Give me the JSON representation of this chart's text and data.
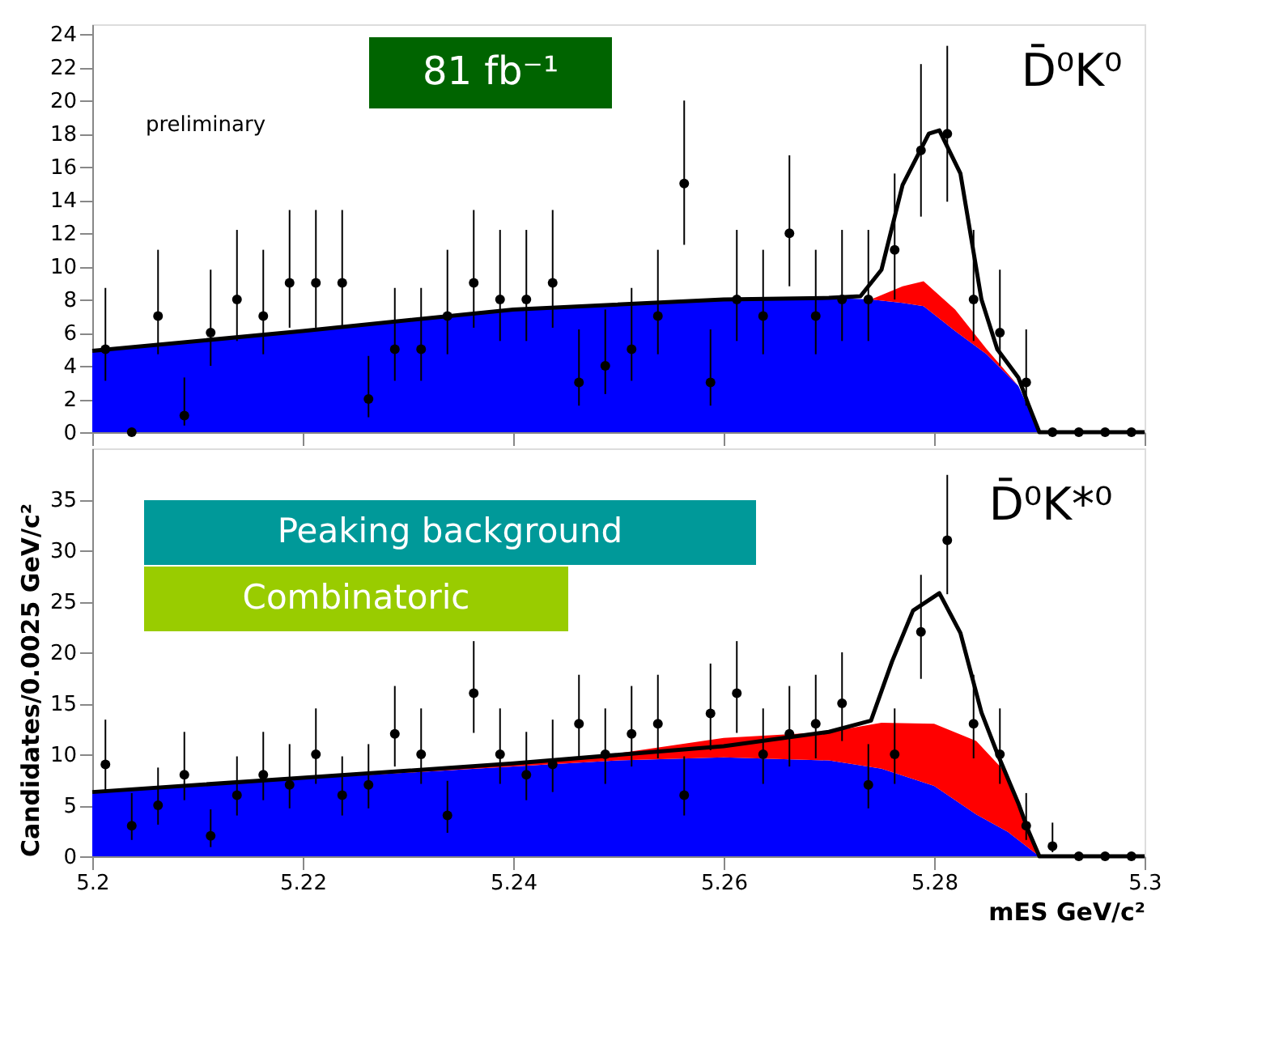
{
  "chart_data": [
    {
      "type": "scatter",
      "title": "D̄⁰K⁰",
      "annotations": [
        "81 fb⁻¹",
        "preliminary"
      ],
      "xlim": [
        5.2,
        5.3
      ],
      "ylim": [
        0,
        24.6
      ],
      "xticks": [
        {
          "value": 5.2,
          "label": null
        },
        {
          "value": 5.22,
          "label": null
        },
        {
          "value": 5.24,
          "label": null
        },
        {
          "value": 5.26,
          "label": null
        },
        {
          "value": 5.28,
          "label": null
        },
        {
          "value": 5.3,
          "label": null
        }
      ],
      "yticks": [
        0,
        2,
        4,
        6,
        8,
        10,
        12,
        14,
        16,
        18,
        20,
        22,
        24
      ],
      "tick_labels": "y",
      "stacked": true,
      "grid": false,
      "series": [
        {
          "type": "area",
          "color": "#0000ff",
          "x": [
            5.2,
            5.22,
            5.24,
            5.26,
            5.27,
            5.274,
            5.277,
            5.279,
            5.282,
            5.285,
            5.288,
            5.29,
            5.3
          ],
          "values": [
            4.9,
            6.1,
            7.4,
            8.0,
            8.1,
            8.0,
            7.8,
            7.6,
            6.1,
            4.7,
            2.8,
            0,
            0
          ]
        },
        {
          "type": "area",
          "color": "#ff0000",
          "x": [
            5.2,
            5.22,
            5.24,
            5.26,
            5.27,
            5.274,
            5.277,
            5.279,
            5.282,
            5.285,
            5.288,
            5.29,
            5.3
          ],
          "values": [
            0,
            0,
            0,
            0,
            0,
            0,
            1.0,
            1.5,
            1.3,
            0.3,
            0,
            0,
            0
          ]
        },
        {
          "type": "line",
          "color": "#000000",
          "line_style": "solid",
          "marker": "none",
          "x": [
            5.2,
            5.22,
            5.24,
            5.26,
            5.27,
            5.273,
            5.275,
            5.277,
            5.2795,
            5.2805,
            5.2825,
            5.2845,
            5.286,
            5.288,
            5.289,
            5.29,
            5.3
          ],
          "values": [
            4.9,
            6.1,
            7.4,
            8.0,
            8.1,
            8.2,
            9.8,
            14.9,
            18.0,
            18.2,
            15.6,
            8.0,
            5.0,
            3.3,
            1.6,
            0,
            0
          ]
        },
        {
          "type": "scatter",
          "color": "#000000",
          "marker": "circle",
          "x": [
            5.20125,
            5.20375,
            5.20625,
            5.20875,
            5.21125,
            5.21375,
            5.21625,
            5.21875,
            5.22125,
            5.22375,
            5.22625,
            5.22875,
            5.23125,
            5.23375,
            5.23625,
            5.23875,
            5.24125,
            5.24375,
            5.24625,
            5.24875,
            5.25125,
            5.25375,
            5.25625,
            5.25875,
            5.26125,
            5.26375,
            5.26625,
            5.26875,
            5.27125,
            5.27375,
            5.27625,
            5.27875,
            5.28125,
            5.28375,
            5.28625,
            5.28875,
            5.29125,
            5.29375,
            5.29625,
            5.29875
          ],
          "values": [
            5,
            0,
            7,
            1,
            6,
            8,
            7,
            9,
            9,
            9,
            2,
            5,
            5,
            7,
            9,
            8,
            8,
            9,
            3,
            4,
            5,
            7,
            15,
            3,
            8,
            7,
            12,
            7,
            8,
            8,
            11,
            17,
            18,
            8,
            6,
            3,
            0,
            0,
            0,
            0
          ],
          "errors": [
            [
              3.1,
              8.7
            ],
            null,
            [
              4.7,
              11.0
            ],
            [
              0.4,
              3.3
            ],
            [
              4.0,
              9.8
            ],
            [
              5.5,
              12.2
            ],
            [
              4.7,
              11.0
            ],
            [
              6.3,
              13.4
            ],
            [
              6.3,
              13.4
            ],
            [
              6.3,
              13.4
            ],
            [
              0.9,
              4.6
            ],
            [
              3.1,
              8.7
            ],
            [
              3.1,
              8.7
            ],
            [
              4.7,
              11.0
            ],
            [
              6.3,
              13.4
            ],
            [
              5.5,
              12.2
            ],
            [
              5.5,
              12.2
            ],
            [
              6.3,
              13.4
            ],
            [
              1.6,
              6.2
            ],
            [
              2.3,
              7.4
            ],
            [
              3.1,
              8.7
            ],
            [
              4.7,
              11.0
            ],
            [
              11.3,
              20.0
            ],
            [
              1.6,
              6.2
            ],
            [
              5.5,
              12.2
            ],
            [
              4.7,
              11.0
            ],
            [
              8.8,
              16.7
            ],
            [
              4.7,
              11.0
            ],
            [
              5.5,
              12.2
            ],
            [
              5.5,
              12.2
            ],
            [
              8.0,
              15.6
            ],
            [
              13.0,
              22.2
            ],
            [
              13.9,
              23.3
            ],
            [
              5.5,
              12.2
            ],
            [
              4.0,
              9.8
            ],
            [
              1.6,
              6.2
            ],
            null,
            null,
            null,
            null
          ]
        }
      ]
    },
    {
      "type": "scatter",
      "title": "D̄⁰K*⁰",
      "xlabel": "mES GeV/c²",
      "ylabel": "Candidates/0.0025 GeV/c²",
      "annotations": [
        "Peaking background",
        "Combinatoric"
      ],
      "xlim": [
        5.2,
        5.3
      ],
      "ylim": [
        0,
        40
      ],
      "xticks": [
        5.2,
        5.22,
        5.24,
        5.26,
        5.28,
        5.3
      ],
      "yticks": [
        0,
        5,
        10,
        15,
        20,
        25,
        30,
        35
      ],
      "stacked": true,
      "grid": false,
      "series": [
        {
          "type": "area",
          "color": "#0000ff",
          "x": [
            5.2,
            5.22,
            5.24,
            5.25,
            5.26,
            5.27,
            5.275,
            5.28,
            5.284,
            5.287,
            5.29,
            5.3
          ],
          "values": [
            6.3,
            7.6,
            8.8,
            9.4,
            9.7,
            9.4,
            8.6,
            6.9,
            4.1,
            2.4,
            0,
            0
          ]
        },
        {
          "type": "area",
          "color": "#ff0000",
          "x": [
            5.2,
            5.22,
            5.24,
            5.25,
            5.26,
            5.27,
            5.275,
            5.28,
            5.284,
            5.287,
            5.29,
            5.3
          ],
          "values": [
            0,
            0.1,
            0.3,
            0.7,
            1.9,
            2.8,
            4.5,
            6.1,
            7.2,
            5.6,
            0,
            0
          ]
        },
        {
          "type": "line",
          "color": "#000000",
          "line_style": "solid",
          "marker": "none",
          "x": [
            5.2,
            5.22,
            5.24,
            5.26,
            5.27,
            5.274,
            5.276,
            5.278,
            5.2805,
            5.2825,
            5.2845,
            5.286,
            5.288,
            5.289,
            5.29,
            5.3
          ],
          "values": [
            6.3,
            7.7,
            9.1,
            10.8,
            12.2,
            13.3,
            19.1,
            24.1,
            25.8,
            21.9,
            14.1,
            10.1,
            5.2,
            2.4,
            0,
            0
          ]
        },
        {
          "type": "scatter",
          "color": "#000000",
          "marker": "circle",
          "x": [
            5.20125,
            5.20375,
            5.20625,
            5.20875,
            5.21125,
            5.21375,
            5.21625,
            5.21875,
            5.22125,
            5.22375,
            5.22625,
            5.22875,
            5.23125,
            5.23375,
            5.23625,
            5.23875,
            5.24125,
            5.24375,
            5.24625,
            5.24875,
            5.25125,
            5.25375,
            5.25625,
            5.25875,
            5.26125,
            5.26375,
            5.26625,
            5.26875,
            5.27125,
            5.27375,
            5.27625,
            5.27875,
            5.28125,
            5.28375,
            5.28625,
            5.28875,
            5.29125,
            5.29375,
            5.29625,
            5.29875
          ],
          "values": [
            9,
            3,
            5,
            8,
            2,
            6,
            8,
            7,
            10,
            6,
            7,
            12,
            10,
            4,
            16,
            10,
            8,
            9,
            13,
            10,
            12,
            13,
            6,
            14,
            16,
            10,
            12,
            13,
            15,
            7,
            10,
            22,
            31,
            13,
            10,
            3,
            1,
            0,
            0,
            0
          ],
          "errors": [
            [
              6.3,
              13.4
            ],
            [
              1.6,
              6.2
            ],
            [
              3.1,
              8.7
            ],
            [
              5.5,
              12.2
            ],
            [
              0.9,
              4.6
            ],
            [
              4.0,
              9.8
            ],
            [
              5.5,
              12.2
            ],
            [
              4.7,
              11.0
            ],
            [
              7.1,
              14.5
            ],
            [
              4.0,
              9.8
            ],
            [
              4.7,
              11.0
            ],
            [
              8.8,
              16.7
            ],
            [
              7.1,
              14.5
            ],
            [
              2.3,
              7.4
            ],
            [
              12.1,
              21.1
            ],
            [
              7.1,
              14.5
            ],
            [
              5.5,
              12.2
            ],
            [
              6.3,
              13.4
            ],
            [
              9.6,
              17.8
            ],
            [
              7.1,
              14.5
            ],
            [
              8.8,
              16.7
            ],
            [
              9.6,
              17.8
            ],
            [
              4.0,
              9.8
            ],
            [
              10.4,
              18.9
            ],
            [
              12.1,
              21.1
            ],
            [
              7.1,
              14.5
            ],
            [
              8.8,
              16.7
            ],
            [
              9.6,
              17.8
            ],
            [
              11.3,
              20.0
            ],
            [
              4.7,
              11.0
            ],
            [
              7.1,
              14.5
            ],
            [
              17.4,
              27.6
            ],
            [
              25.7,
              37.4
            ],
            [
              9.6,
              17.8
            ],
            [
              7.1,
              14.5
            ],
            [
              1.6,
              6.2
            ],
            [
              0.4,
              3.3
            ],
            null,
            null,
            null
          ]
        }
      ]
    }
  ]
}
